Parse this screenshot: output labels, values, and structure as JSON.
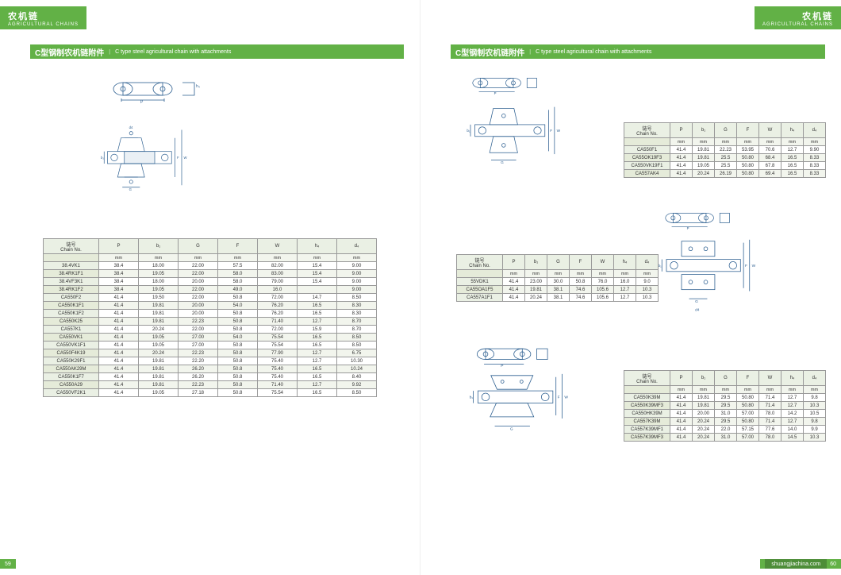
{
  "header": {
    "cn": "农机链",
    "en": "AGRICULTURAL CHAINS"
  },
  "title": {
    "cn": "C型钢制农机链附件",
    "en": "C type steel agricultural chain with attachments"
  },
  "columns": {
    "chain": "链号\nChain No.",
    "P": "P",
    "b1": "b₁",
    "G": "G",
    "F": "F",
    "W": "W",
    "h4": "h₄",
    "d4": "d₄"
  },
  "unit": "mm",
  "footer": {
    "left_page": "59",
    "right_page": "60",
    "site": "shuangjiachina.com"
  },
  "diagram_labels": {
    "P": "P",
    "G": "G",
    "F": "F",
    "W": "W",
    "b1": "b₁",
    "d4": "d4",
    "h4": "h₄"
  },
  "colors": {
    "brand_green": "#62b146",
    "brand_green_dark": "#4d8d38",
    "diagram_blue": "#2a5d8f",
    "table_border": "#999",
    "th_bg": "#eaf0e4",
    "row_alt": "#f2f5ed"
  },
  "left_table": {
    "rows": [
      [
        "38.4VK1",
        "38.4",
        "18.00",
        "22.00",
        "57.5",
        "82.00",
        "15.4",
        "9.00"
      ],
      [
        "38.4RK1F1",
        "38.4",
        "19.05",
        "22.00",
        "58.0",
        "83.00",
        "15.4",
        "9.00"
      ],
      [
        "38.4VF3K1",
        "38.4",
        "18.00",
        "20.00",
        "58.0",
        "79.00",
        "15.4",
        "9.00"
      ],
      [
        "38.4RK1F2",
        "38.4",
        "19.05",
        "22.00",
        "49.0",
        "16.0",
        "",
        "9.00"
      ],
      [
        "CA550F2",
        "41.4",
        "19.50",
        "22.00",
        "50.8",
        "72.00",
        "14.7",
        "8.50"
      ],
      [
        "CA550K1F1",
        "41.4",
        "19.81",
        "20.00",
        "54.0",
        "76.20",
        "16.5",
        "8.30"
      ],
      [
        "CA550K1F2",
        "41.4",
        "19.81",
        "20.00",
        "50.8",
        "76.20",
        "16.5",
        "8.30"
      ],
      [
        "CA550K25",
        "41.4",
        "19.81",
        "22.23",
        "50.8",
        "71.40",
        "12.7",
        "8.70"
      ],
      [
        "CA557K1",
        "41.4",
        "20.24",
        "22.00",
        "50.8",
        "72.00",
        "15.9",
        "8.70"
      ],
      [
        "CA550VK1",
        "41.4",
        "19.05",
        "27.00",
        "54.0",
        "75.54",
        "16.5",
        "8.50"
      ],
      [
        "CA550VK1F1",
        "41.4",
        "19.05",
        "27.00",
        "50.8",
        "75.54",
        "16.5",
        "8.50"
      ],
      [
        "CA550F4K19",
        "41.4",
        "20.24",
        "22.23",
        "50.8",
        "77.90",
        "12.7",
        "6.75"
      ],
      [
        "CA550K29F1",
        "41.4",
        "19.81",
        "22.20",
        "50.8",
        "75.40",
        "12.7",
        "10.30"
      ],
      [
        "CA550AK29M",
        "41.4",
        "19.81",
        "26.20",
        "50.8",
        "75.40",
        "16.5",
        "10.24"
      ],
      [
        "CA550K1F7",
        "41.4",
        "19.81",
        "26.20",
        "50.8",
        "75.40",
        "16.5",
        "8.40"
      ],
      [
        "CA550A29",
        "41.4",
        "19.81",
        "22.23",
        "50.8",
        "71.40",
        "12.7",
        "9.92"
      ],
      [
        "CA550VF2K1",
        "41.4",
        "19.05",
        "27.18",
        "50.8",
        "75.54",
        "16.5",
        "8.50"
      ]
    ]
  },
  "right_table_1": {
    "rows": [
      [
        "CA550F1",
        "41.4",
        "19.81",
        "22.23",
        "53.95",
        "70.6",
        "12.7",
        "9.90"
      ],
      [
        "CA55OK19F3",
        "41.4",
        "19.81",
        "25.5",
        "50.80",
        "68.4",
        "16.5",
        "8.33"
      ],
      [
        "CA550VK19F1",
        "41.4",
        "19.05",
        "25.5",
        "50.80",
        "67.8",
        "16.5",
        "8.33"
      ],
      [
        "CA557AK4",
        "41.4",
        "20.24",
        "26.19",
        "50.80",
        "69.4",
        "16.5",
        "8.33"
      ]
    ]
  },
  "right_table_2": {
    "rows": [
      [
        "55VDK1",
        "41.4",
        "23.00",
        "30.0",
        "50.8",
        "76.0",
        "16.0",
        "9.0"
      ],
      [
        "CA55OA1F5",
        "41.4",
        "19.81",
        "38.1",
        "74.6",
        "105.6",
        "12.7",
        "10.3"
      ],
      [
        "CA557A1F1",
        "41.4",
        "20.24",
        "38.1",
        "74.6",
        "105.6",
        "12.7",
        "10.3"
      ]
    ]
  },
  "right_table_3": {
    "rows": [
      [
        "CA550K39M",
        "41.4",
        "19.81",
        "29.5",
        "50.80",
        "71.4",
        "12.7",
        "9.8"
      ],
      [
        "CA550K39MF3",
        "41.4",
        "19.81",
        "29.5",
        "50.80",
        "71.4",
        "12.7",
        "10.3"
      ],
      [
        "CA550HK39M",
        "41.4",
        "20.00",
        "31.0",
        "57.00",
        "78.0",
        "14.2",
        "10.5"
      ],
      [
        "CA557K39M",
        "41.4",
        "20.24",
        "29.5",
        "50.80",
        "71.4",
        "12.7",
        "9.8"
      ],
      [
        "CA557K39MF1",
        "41.4",
        "20.24",
        "22.0",
        "57.15",
        "77.6",
        "14.0",
        "9.9"
      ],
      [
        "CA557K39MF3",
        "41.4",
        "20.24",
        "31.0",
        "57.00",
        "78.0",
        "14.5",
        "10.3"
      ]
    ]
  }
}
